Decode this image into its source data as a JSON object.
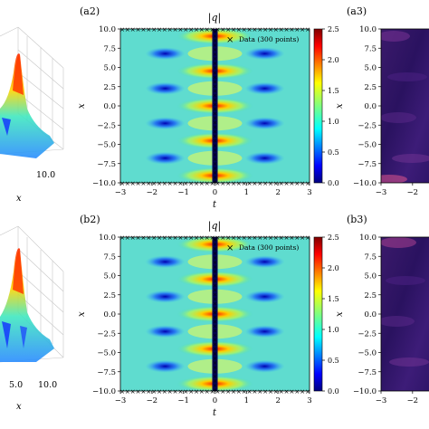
{
  "chart_data": [
    {
      "panel": "a2",
      "type": "heatmap",
      "panel_label": "(a2)",
      "title": "|q|",
      "xlabel": "t",
      "ylabel": "x",
      "xlim": [
        -3,
        3
      ],
      "ylim": [
        -10,
        10
      ],
      "xticks": [
        "−3",
        "−2",
        "−1",
        "0",
        "1",
        "2",
        "3"
      ],
      "yticks": [
        "10.0",
        "7.5",
        "5.0",
        "2.5",
        "0.0",
        "−2.5",
        "−5.0",
        "−7.5",
        "−10.0"
      ],
      "legend": "Data (300 points)",
      "legend_position": "top-right",
      "colorbar": {
        "range": [
          0,
          2.5
        ],
        "ticks": [
          "2.5",
          "2.0",
          "1.5",
          "1.0",
          "0.5",
          "0.0"
        ]
      },
      "colormap": "jet"
    },
    {
      "panel": "b2",
      "type": "heatmap",
      "panel_label": "(b2)",
      "title": "|q|",
      "xlabel": "t",
      "ylabel": "x",
      "xlim": [
        -3,
        3
      ],
      "ylim": [
        -10,
        10
      ],
      "xticks": [
        "−3",
        "−2",
        "−1",
        "0",
        "1",
        "2",
        "3"
      ],
      "yticks": [
        "10.0",
        "7.5",
        "5.0",
        "2.5",
        "0.0",
        "−2.5",
        "−5.0",
        "−7.5",
        "−10.0"
      ],
      "legend": "Data (300 points)",
      "legend_position": "top-right",
      "colorbar": {
        "range": [
          0,
          2.5
        ],
        "ticks": [
          "2.5",
          "2.0",
          "1.5",
          "1.0",
          "0.5",
          "0.0"
        ]
      },
      "colormap": "jet"
    },
    {
      "panel": "a3",
      "type": "heatmap",
      "panel_label": "(a3)",
      "ylabel": "x",
      "yticks": [
        "10.0",
        "7.5",
        "5.0",
        "2.5",
        "0.0",
        "−2.5",
        "−5.0",
        "−7.5",
        "−10.0"
      ],
      "xticks": [
        "−3",
        "−2"
      ],
      "colormap": "magma"
    },
    {
      "panel": "b3",
      "type": "heatmap",
      "panel_label": "(b3)",
      "ylabel": "x",
      "yticks": [
        "10.0",
        "7.5",
        "5.0",
        "2.5",
        "0.0",
        "−2.5",
        "−5.0",
        "−7.5",
        "−10.0"
      ],
      "xticks": [
        "−3",
        "−2"
      ],
      "colormap": "magma"
    },
    {
      "panel": "a1",
      "type": "surface",
      "xlabel": "x",
      "xticks": [
        "10.0"
      ]
    },
    {
      "panel": "b1",
      "type": "surface",
      "xlabel": "x",
      "xticks": [
        "5.0",
        "10.0"
      ]
    }
  ]
}
